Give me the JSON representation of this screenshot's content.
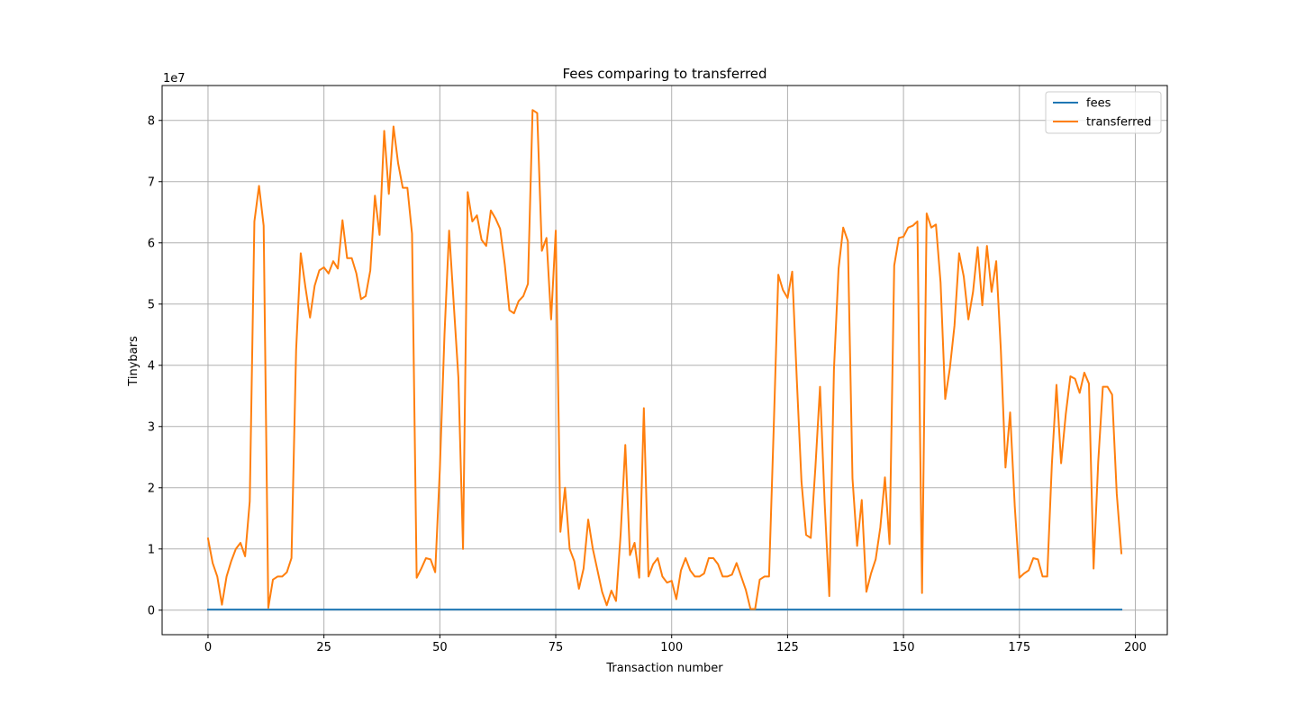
{
  "chart_data": {
    "type": "line",
    "title": "Fees comparing to transferred",
    "xlabel": "Transaction number",
    "ylabel": "Tinybars",
    "y_offset_label": "1e7",
    "xlim": [
      -9.9,
      206.9
    ],
    "ylim": [
      -0.4,
      8.57
    ],
    "x_ticks": [
      0,
      25,
      50,
      75,
      100,
      125,
      150,
      175,
      200
    ],
    "y_ticks": [
      0,
      1,
      2,
      3,
      4,
      5,
      6,
      7,
      8
    ],
    "grid": true,
    "legend_position": "top-right",
    "series": [
      {
        "name": "fees",
        "color": "#1f77b4",
        "x": [
          0,
          197
        ],
        "values": [
          0.01,
          0.01
        ]
      },
      {
        "name": "transferred",
        "color": "#ff7f0e",
        "values": [
          1.17,
          0.77,
          0.55,
          0.09,
          0.55,
          0.8,
          1.0,
          1.1,
          0.88,
          1.78,
          6.35,
          6.93,
          6.28,
          0.04,
          0.5,
          0.55,
          0.55,
          0.62,
          0.85,
          4.25,
          5.83,
          5.28,
          4.78,
          5.3,
          5.55,
          5.6,
          5.5,
          5.7,
          5.58,
          6.37,
          5.75,
          5.75,
          5.5,
          5.08,
          5.13,
          5.55,
          6.77,
          6.13,
          7.83,
          6.8,
          7.9,
          7.3,
          6.9,
          6.9,
          6.15,
          0.53,
          0.68,
          0.85,
          0.83,
          0.62,
          2.3,
          4.5,
          6.2,
          5.0,
          3.8,
          1.0,
          6.83,
          6.35,
          6.45,
          6.05,
          5.95,
          6.53,
          6.4,
          6.23,
          5.65,
          4.9,
          4.85,
          5.05,
          5.13,
          5.33,
          8.17,
          8.12,
          5.87,
          6.08,
          4.75,
          6.2,
          1.28,
          2.0,
          1.0,
          0.8,
          0.35,
          0.68,
          1.48,
          1.0,
          0.65,
          0.3,
          0.08,
          0.32,
          0.15,
          1.25,
          2.7,
          0.9,
          1.1,
          0.53,
          3.3,
          0.55,
          0.75,
          0.85,
          0.55,
          0.45,
          0.48,
          0.18,
          0.65,
          0.85,
          0.65,
          0.55,
          0.55,
          0.6,
          0.85,
          0.85,
          0.75,
          0.55,
          0.55,
          0.58,
          0.77,
          0.55,
          0.33,
          0.02,
          0.02,
          0.5,
          0.55,
          0.55,
          2.95,
          5.48,
          5.23,
          5.1,
          5.53,
          3.75,
          2.1,
          1.23,
          1.18,
          2.33,
          3.65,
          1.75,
          0.23,
          3.93,
          5.58,
          6.25,
          6.03,
          2.15,
          1.05,
          1.8,
          0.3,
          0.6,
          0.83,
          1.35,
          2.17,
          1.08,
          5.63,
          6.08,
          6.1,
          6.25,
          6.28,
          6.35,
          0.28,
          6.48,
          6.25,
          6.3,
          5.35,
          3.45,
          3.95,
          4.65,
          5.83,
          5.45,
          4.75,
          5.2,
          5.93,
          4.98,
          5.95,
          5.2,
          5.7,
          4.25,
          2.33,
          3.23,
          1.7,
          0.53,
          0.6,
          0.65,
          0.85,
          0.83,
          0.55,
          0.55,
          2.38,
          3.68,
          2.4,
          3.2,
          3.82,
          3.78,
          3.55,
          3.88,
          3.7,
          0.68,
          2.42,
          3.65,
          3.65,
          3.52,
          1.9,
          0.93
        ]
      }
    ]
  }
}
